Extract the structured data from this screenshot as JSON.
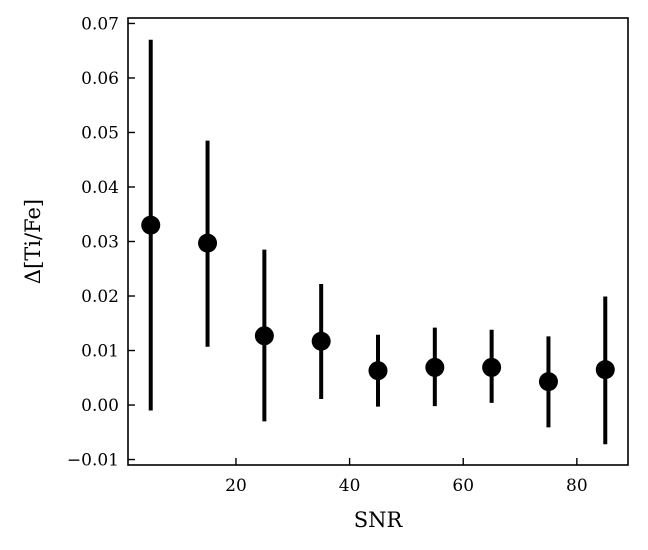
{
  "chart_data": {
    "type": "scatter",
    "title": "",
    "xlabel": "SNR",
    "ylabel": "Δ[Ti/Fe]",
    "xlim": [
      1,
      89
    ],
    "ylim": [
      -0.011,
      0.071
    ],
    "xticks": [
      20,
      40,
      60,
      80
    ],
    "yticks": [
      -0.01,
      0.0,
      0.01,
      0.02,
      0.03,
      0.04,
      0.05,
      0.06,
      0.07
    ],
    "xtick_labels": [
      "20",
      "40",
      "60",
      "80"
    ],
    "ytick_labels": [
      "−0.01",
      "0.00",
      "0.01",
      "0.02",
      "0.03",
      "0.04",
      "0.05",
      "0.06",
      "0.07"
    ],
    "grid": false,
    "series": [
      {
        "x": [
          5,
          15,
          25,
          35,
          45,
          55,
          65,
          75,
          85
        ],
        "y": [
          0.033,
          0.0297,
          0.0127,
          0.0117,
          0.0063,
          0.0069,
          0.0069,
          0.0043,
          0.0065
        ],
        "yerr_low": [
          -0.001,
          0.0107,
          -0.003,
          0.0011,
          -0.0003,
          -0.0002,
          0.0004,
          -0.0041,
          -0.0072
        ],
        "yerr_high": [
          0.067,
          0.0485,
          0.0285,
          0.0222,
          0.0129,
          0.0142,
          0.0138,
          0.0126,
          0.0199
        ]
      }
    ],
    "colors": {
      "marker": "#000000",
      "axes": "#000000"
    }
  }
}
